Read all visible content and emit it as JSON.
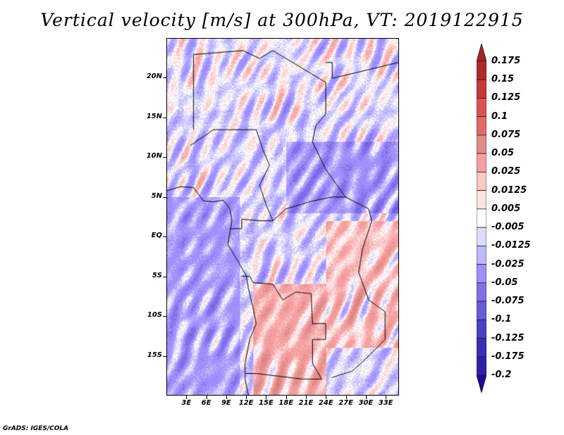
{
  "title": "Vertical velocity [m/s] at 300hPa, VT: 2019122915",
  "credit": "GrADS: IGES/COLA",
  "map": {
    "lat_range": [
      -20,
      25
    ],
    "lon_range": [
      0,
      35
    ],
    "lat_labels": [
      {
        "lat": 20,
        "label": "20N"
      },
      {
        "lat": 15,
        "label": "15N"
      },
      {
        "lat": 10,
        "label": "10N"
      },
      {
        "lat": 5,
        "label": "5N"
      },
      {
        "lat": 0,
        "label": "EQ"
      },
      {
        "lat": -5,
        "label": "5S"
      },
      {
        "lat": -10,
        "label": "10S"
      },
      {
        "lat": -15,
        "label": "15S"
      }
    ],
    "lon_labels": [
      {
        "lon": 3,
        "label": "3E"
      },
      {
        "lon": 6,
        "label": "6E"
      },
      {
        "lon": 9,
        "label": "9E"
      },
      {
        "lon": 12,
        "label": "12E"
      },
      {
        "lon": 15,
        "label": "15E"
      },
      {
        "lon": 18,
        "label": "18E"
      },
      {
        "lon": 21,
        "label": "21E"
      },
      {
        "lon": 24,
        "label": "24E"
      },
      {
        "lon": 27,
        "label": "27E"
      },
      {
        "lon": 30,
        "label": "30E"
      },
      {
        "lon": 33,
        "label": "33E"
      }
    ]
  },
  "colorbar": {
    "labels": [
      "0.175",
      "0.15",
      "0.125",
      "0.1",
      "0.075",
      "0.05",
      "0.025",
      "0.0125",
      "0.005",
      "-0.005",
      "-0.0125",
      "-0.025",
      "-0.05",
      "-0.075",
      "-0.1",
      "-0.125",
      "-0.175",
      "-0.2"
    ],
    "colors": [
      "#a82424",
      "#b22828",
      "#c83838",
      "#e05050",
      "#e06a6a",
      "#e08a8a",
      "#f4a0a0",
      "#fcc8c8",
      "#fde4e4",
      "#ffffff",
      "#dcdcfc",
      "#c0b8fc",
      "#a090fc",
      "#8070e8",
      "#6a5ad8",
      "#4c40c8",
      "#3c2cb8",
      "#3020a8",
      "#200898"
    ]
  }
}
